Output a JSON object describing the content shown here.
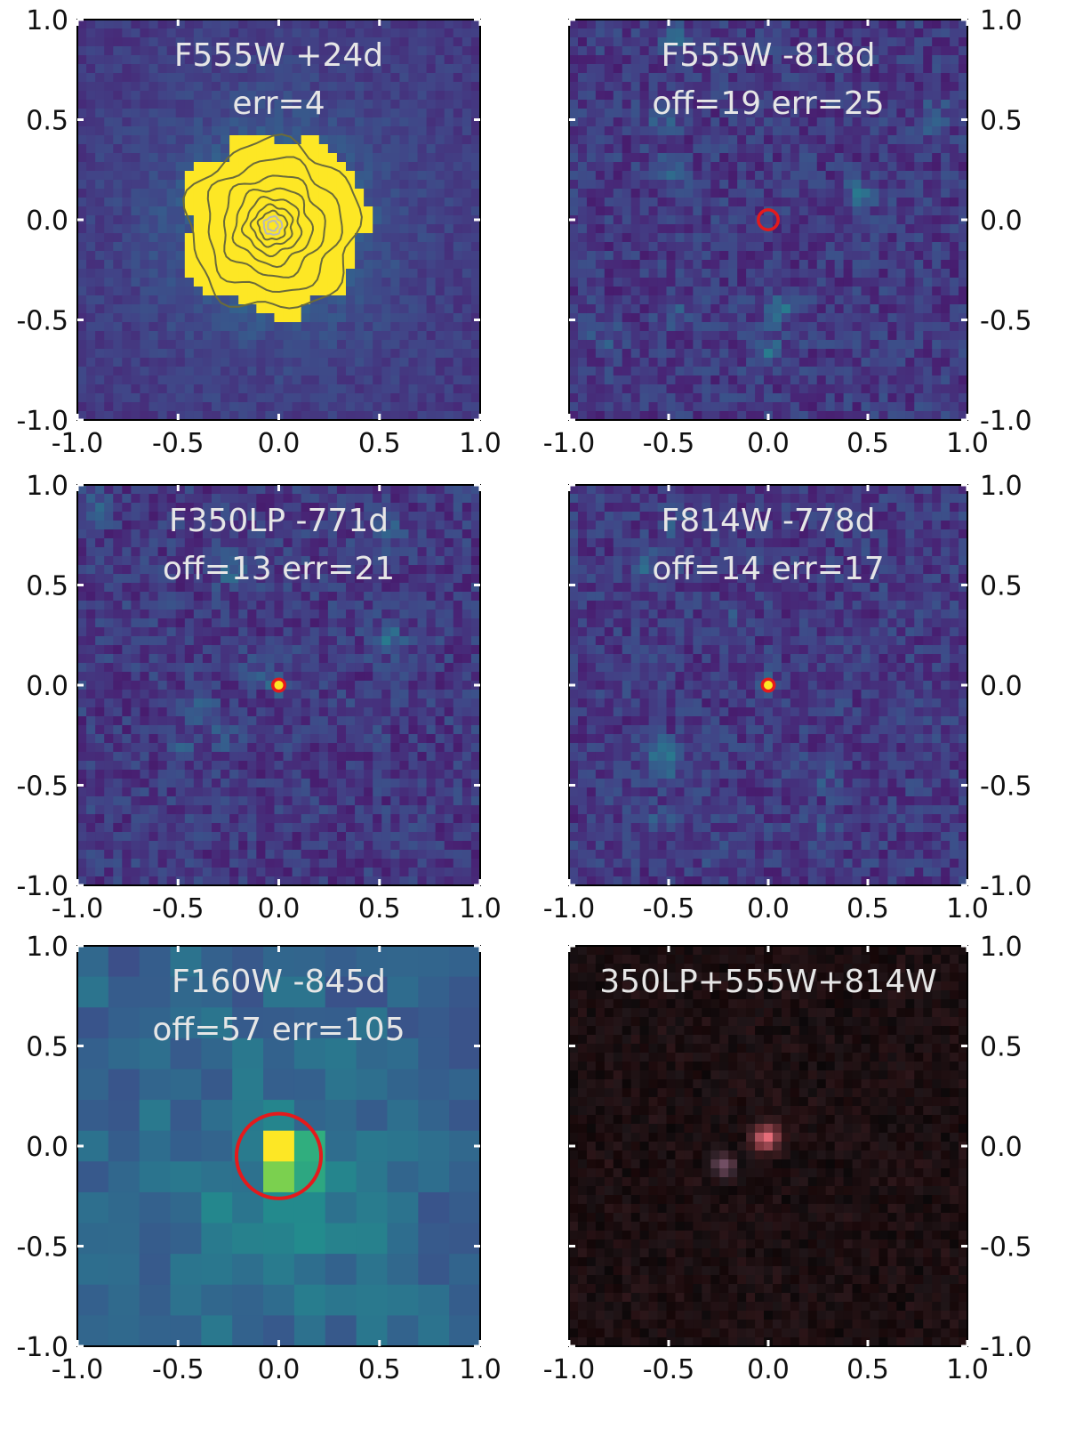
{
  "figure": {
    "panels": [
      {
        "id": "p1",
        "title_lines": [
          "F555W +24d",
          "err=4"
        ],
        "axis_labels_side": "left",
        "image_style": "bright-source-with-contours",
        "colormap": "viridis",
        "red_circle": false
      },
      {
        "id": "p2",
        "title_lines": [
          "F555W -818d",
          "off=19 err=25"
        ],
        "axis_labels_side": "right",
        "image_style": "faint-field",
        "colormap": "viridis",
        "red_circle": true,
        "circle_center": [
          0.0,
          0.0
        ],
        "circle_radius": 0.05
      },
      {
        "id": "p3",
        "title_lines": [
          "F350LP -771d",
          "off=13 err=21"
        ],
        "axis_labels_side": "left",
        "image_style": "faint-field-with-point-source",
        "colormap": "viridis",
        "red_circle": true,
        "circle_center": [
          0.0,
          0.0
        ],
        "circle_radius": 0.03
      },
      {
        "id": "p4",
        "title_lines": [
          "F814W -778d",
          "off=14 err=17"
        ],
        "axis_labels_side": "right",
        "image_style": "faint-field-with-point-source",
        "colormap": "viridis",
        "red_circle": true,
        "circle_center": [
          0.0,
          0.0
        ],
        "circle_radius": 0.03
      },
      {
        "id": "p5",
        "title_lines": [
          "F160W -845d",
          "off=57 err=105"
        ],
        "axis_labels_side": "left",
        "image_style": "coarse-pixels",
        "colormap": "viridis",
        "red_circle": true,
        "circle_center": [
          0.0,
          -0.05
        ],
        "circle_radius": 0.21
      },
      {
        "id": "p6",
        "title_lines": [
          "350LP+555W+814W"
        ],
        "axis_labels_side": "right",
        "image_style": "rgb-composite-dark",
        "colormap": "rgb",
        "red_circle": false
      }
    ],
    "axes": {
      "x_range": [
        -1.0,
        1.0
      ],
      "y_range": [
        -1.0,
        1.0
      ],
      "tick_values": [
        -1.0,
        -0.5,
        0.0,
        0.5,
        1.0
      ],
      "tick_labels": [
        "-1.0",
        "-0.5",
        "0.0",
        "0.5",
        "1.0"
      ]
    },
    "colors": {
      "viridis_low": "#440154",
      "viridis_mid": "#21918c",
      "viridis_high": "#fde725",
      "circle": "#e41a1c",
      "title_text": "#e6e6e6",
      "tick": "#ffffff"
    }
  }
}
